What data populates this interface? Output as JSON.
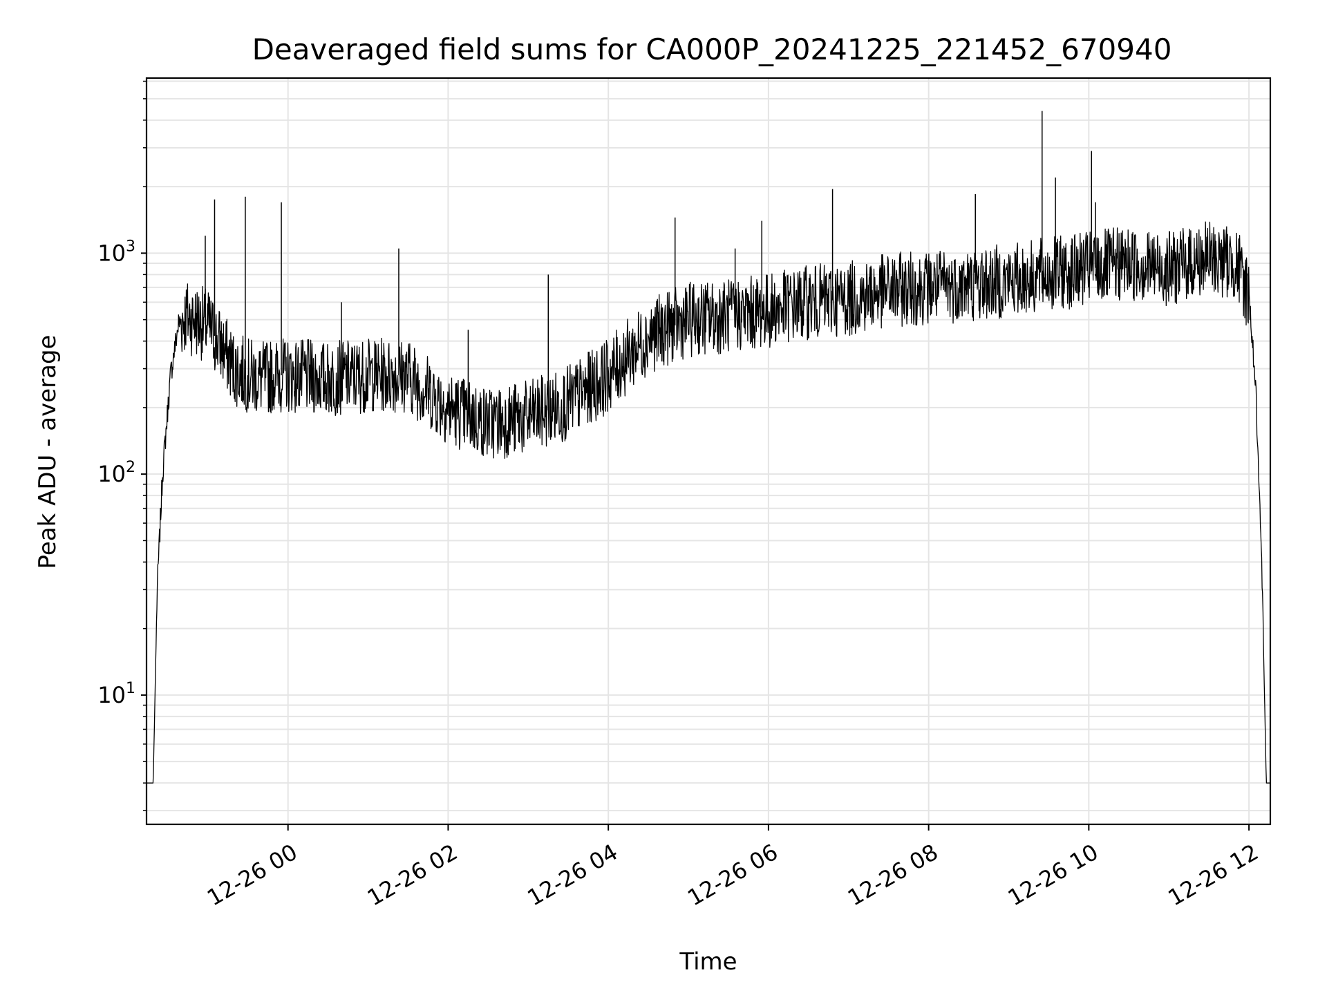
{
  "chart_data": {
    "type": "line",
    "title": "Deaveraged field sums for CA000P_20241225_221452_670940",
    "xlabel": "Time",
    "ylabel": "Peak ADU - average",
    "x_range": [
      "2024-12-25 22:14",
      "2024-12-26 12:16"
    ],
    "y_scale": "log",
    "ylim": [
      2.6,
      6200
    ],
    "grid": true,
    "line_color": "#000000",
    "grid_color": "#e5e5e5",
    "x_ticks": [
      {
        "value": "2024-12-26 00:00",
        "label": "12-26 00"
      },
      {
        "value": "2024-12-26 02:00",
        "label": "12-26 02"
      },
      {
        "value": "2024-12-26 04:00",
        "label": "12-26 04"
      },
      {
        "value": "2024-12-26 06:00",
        "label": "12-26 06"
      },
      {
        "value": "2024-12-26 08:00",
        "label": "12-26 08"
      },
      {
        "value": "2024-12-26 10:00",
        "label": "12-26 10"
      },
      {
        "value": "2024-12-26 12:00",
        "label": "12-26 12"
      }
    ],
    "y_ticks": [
      {
        "value": 10,
        "base": "10",
        "exp": "1"
      },
      {
        "value": 100,
        "base": "10",
        "exp": "2"
      },
      {
        "value": 1000,
        "base": "10",
        "exp": "3"
      }
    ],
    "series": [
      {
        "x": [
          "2024-12-25 22:14",
          "2024-12-25 22:19",
          "2024-12-25 22:22",
          "2024-12-25 22:26",
          "2024-12-25 22:32",
          "2024-12-25 22:38",
          "2024-12-25 22:44",
          "2024-12-25 22:50",
          "2024-12-25 23:00",
          "2024-12-25 23:10",
          "2024-12-25 23:20",
          "2024-12-25 23:30",
          "2024-12-25 23:40",
          "2024-12-25 23:50",
          "2024-12-26 00:00",
          "2024-12-26 00:30",
          "2024-12-26 01:00",
          "2024-12-26 01:30",
          "2024-12-26 02:00",
          "2024-12-26 02:30",
          "2024-12-26 03:00",
          "2024-12-26 03:30",
          "2024-12-26 04:00",
          "2024-12-26 04:30",
          "2024-12-26 05:00",
          "2024-12-26 05:30",
          "2024-12-26 06:00",
          "2024-12-26 06:30",
          "2024-12-26 07:00",
          "2024-12-26 07:30",
          "2024-12-26 08:00",
          "2024-12-26 08:30",
          "2024-12-26 09:00",
          "2024-12-26 09:30",
          "2024-12-26 10:00",
          "2024-12-26 10:30",
          "2024-12-26 11:00",
          "2024-12-26 11:30",
          "2024-12-26 11:50",
          "2024-12-26 12:00",
          "2024-12-26 12:05",
          "2024-12-26 12:10",
          "2024-12-26 12:13",
          "2024-12-26 12:16"
        ],
        "y": [
          4,
          4,
          30,
          100,
          280,
          480,
          520,
          500,
          470,
          380,
          300,
          280,
          270,
          280,
          280,
          270,
          280,
          280,
          200,
          170,
          180,
          210,
          280,
          420,
          500,
          520,
          550,
          600,
          620,
          680,
          700,
          720,
          750,
          800,
          850,
          900,
          850,
          950,
          900,
          650,
          250,
          30,
          4,
          4
        ]
      }
    ],
    "spikes": [
      {
        "x": "2024-12-25 22:58",
        "y": 1200
      },
      {
        "x": "2024-12-25 23:05",
        "y": 1750
      },
      {
        "x": "2024-12-25 23:28",
        "y": 1800
      },
      {
        "x": "2024-12-25 23:55",
        "y": 1700
      },
      {
        "x": "2024-12-26 00:40",
        "y": 600
      },
      {
        "x": "2024-12-26 01:23",
        "y": 1050
      },
      {
        "x": "2024-12-26 02:15",
        "y": 450
      },
      {
        "x": "2024-12-26 03:15",
        "y": 800
      },
      {
        "x": "2024-12-26 04:50",
        "y": 1450
      },
      {
        "x": "2024-12-26 05:35",
        "y": 1050
      },
      {
        "x": "2024-12-26 05:55",
        "y": 1400
      },
      {
        "x": "2024-12-26 06:48",
        "y": 1950
      },
      {
        "x": "2024-12-26 08:35",
        "y": 1850
      },
      {
        "x": "2024-12-26 09:25",
        "y": 4400
      },
      {
        "x": "2024-12-26 09:35",
        "y": 2200
      },
      {
        "x": "2024-12-26 10:02",
        "y": 2900
      },
      {
        "x": "2024-12-26 10:05",
        "y": 1700
      }
    ]
  }
}
